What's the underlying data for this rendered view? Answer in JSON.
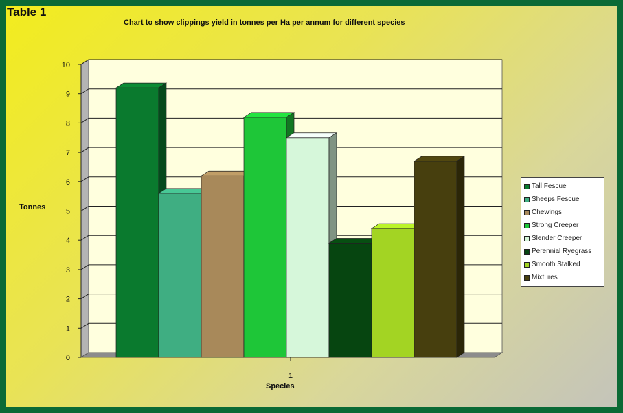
{
  "header": {
    "table_label": "Table 1"
  },
  "chart_data": {
    "type": "bar",
    "style": "3d",
    "title": "Chart to show clippings yield in tonnes per Ha per annum for different species",
    "xlabel": "Species",
    "ylabel": "Tonnes",
    "categories": [
      "1"
    ],
    "ylim": [
      0,
      10
    ],
    "yticks": [
      "0",
      "1",
      "2",
      "3",
      "4",
      "5",
      "6",
      "7",
      "8",
      "9",
      "10"
    ],
    "grid": true,
    "legend_position": "right",
    "series": [
      {
        "name": "Tall Fescue",
        "values": [
          9.2
        ],
        "color": "#0a7a2e"
      },
      {
        "name": "Sheeps Fescue",
        "values": [
          5.6
        ],
        "color": "#3fae82"
      },
      {
        "name": "Chewings",
        "values": [
          6.2
        ],
        "color": "#a8895a"
      },
      {
        "name": "Strong Creeper",
        "values": [
          8.2
        ],
        "color": "#1ec638"
      },
      {
        "name": "Slender Creeper",
        "values": [
          7.5
        ],
        "color": "#d6f7da"
      },
      {
        "name": "Perennial Ryegrass",
        "values": [
          3.9
        ],
        "color": "#064510"
      },
      {
        "name": "Smooth Stalked",
        "values": [
          4.4
        ],
        "color": "#a3d423"
      },
      {
        "name": "Mixtures",
        "values": [
          6.7
        ],
        "color": "#473f0e"
      }
    ]
  }
}
